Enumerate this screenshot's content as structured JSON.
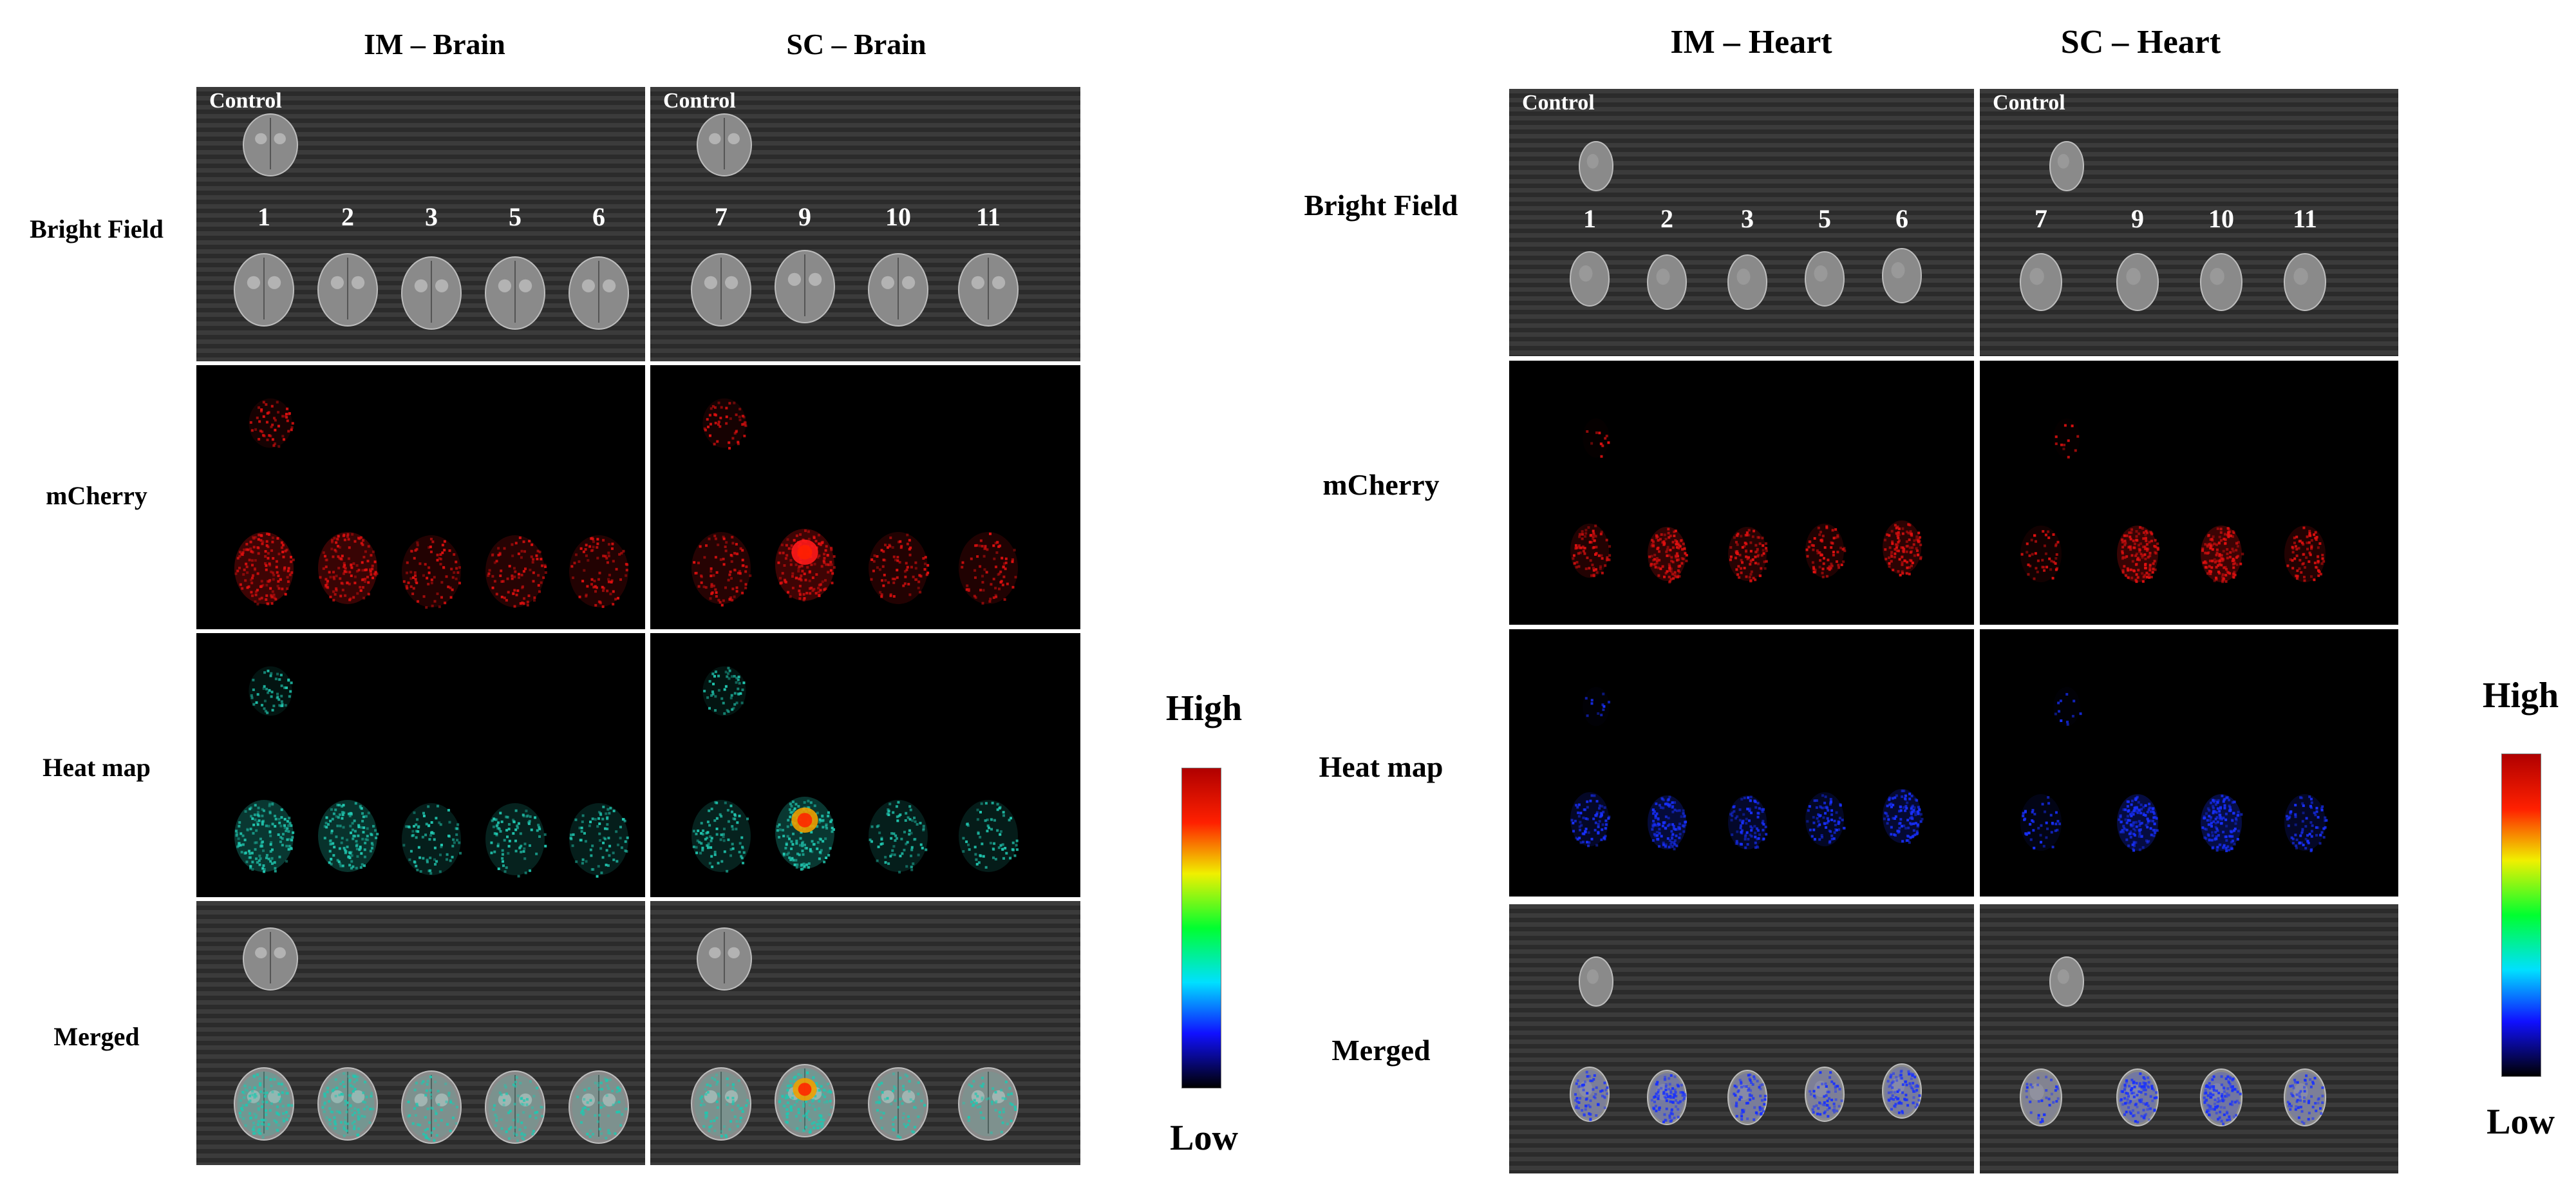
{
  "rows": [
    "Bright Field",
    "mCherry",
    "Heat map",
    "Merged"
  ],
  "brain": {
    "titles": [
      "IM – Brain",
      "SC – Brain"
    ],
    "control_label": "Control",
    "samples_im": [
      "1",
      "2",
      "3",
      "5",
      "6"
    ],
    "samples_sc": [
      "7",
      "9",
      "10",
      "11"
    ]
  },
  "heart": {
    "titles": [
      "IM – Heart",
      "SC – Heart"
    ],
    "control_label": "Control",
    "samples_im": [
      "1",
      "2",
      "3",
      "5",
      "6"
    ],
    "samples_sc": [
      "7",
      "9",
      "10",
      "11"
    ]
  },
  "scale": {
    "high": "High",
    "low": "Low"
  },
  "colors": {
    "mcherry": "#e01010",
    "heat_brain": "#21c7b0",
    "heat_brain_hot": "#f0a000",
    "heat_heart": "#1830ff",
    "brightfield_bg": "#2b2b2b",
    "organ": "#8a8a8a",
    "colorbar_stops": [
      "#000000",
      "#1010ff",
      "#00e0ff",
      "#00ff30",
      "#f0f000",
      "#ff2000",
      "#b00000"
    ]
  }
}
